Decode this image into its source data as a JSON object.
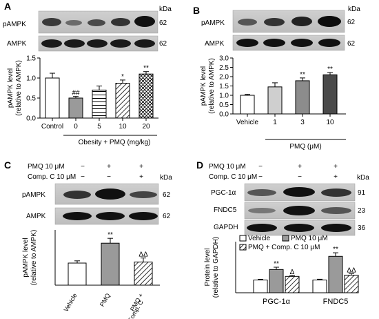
{
  "panels": {
    "A": {
      "letter": "A"
    },
    "B": {
      "letter": "B"
    },
    "C": {
      "letter": "C"
    },
    "D": {
      "letter": "D"
    }
  },
  "blots": {
    "A": {
      "kda_label": "kDa",
      "rows": [
        {
          "name": "pAMPK",
          "kda": "62"
        },
        {
          "name": "AMPK",
          "kda": "62"
        }
      ]
    },
    "B": {
      "kda_label": "kDa",
      "rows": [
        {
          "name": "pAMPK",
          "kda": "62"
        },
        {
          "name": "AMPK",
          "kda": "62"
        }
      ]
    },
    "C": {
      "kda_label": "kDa",
      "rows": [
        {
          "name": "pAMPK",
          "kda": "62"
        },
        {
          "name": "AMPK",
          "kda": "62"
        }
      ]
    },
    "D": {
      "kda_label": "kDa",
      "rows": [
        {
          "name": "PGC-1α",
          "kda": "91"
        },
        {
          "name": "FNDC5",
          "kda": "23"
        },
        {
          "name": "GAPDH",
          "kda": "36"
        }
      ]
    }
  },
  "treatments": {
    "C": {
      "rows": [
        {
          "label": "PMQ 10 μM",
          "marks": [
            "−",
            "+",
            "+"
          ]
        },
        {
          "label": "Comp. C 10 μM",
          "marks": [
            "−",
            "−",
            "+"
          ]
        }
      ]
    },
    "D": {
      "rows": [
        {
          "label": "PMQ 10 μM",
          "marks": [
            "−",
            "+",
            "+"
          ]
        },
        {
          "label": "Comp. C 10 μM",
          "marks": [
            "−",
            "−",
            "+"
          ]
        }
      ]
    }
  },
  "chart_data": [
    {
      "panel": "A",
      "type": "bar",
      "categories": [
        "Control",
        "0",
        "5",
        "10",
        "20"
      ],
      "values": [
        1.0,
        0.5,
        0.7,
        0.87,
        1.1
      ],
      "errors": [
        0.12,
        0.04,
        0.1,
        0.08,
        0.06
      ],
      "annotations": [
        "",
        "##",
        "",
        "*",
        "**"
      ],
      "ylabel_line1": "pAMPK level",
      "ylabel_line2": "(relative to AMPK)",
      "xgroup_label": "Obesity + PMQ (mg/kg)",
      "ylim": [
        0,
        1.5
      ],
      "yticks": [
        "0.0",
        "0.5",
        "1.0",
        "1.5"
      ]
    },
    {
      "panel": "B",
      "type": "bar",
      "categories": [
        "Vehicle",
        "1",
        "3",
        "10"
      ],
      "values": [
        1.0,
        1.45,
        1.78,
        2.1
      ],
      "errors": [
        0.05,
        0.22,
        0.15,
        0.12
      ],
      "annotations": [
        "",
        "",
        "**",
        "**"
      ],
      "ylabel_line1": "pAMPK level",
      "ylabel_line2": "(relative to AMPK)",
      "xgroup_label": "PMQ (μM)",
      "ylim": [
        0,
        3.0
      ],
      "yticks": [
        "0.0",
        "0.5",
        "1.0",
        "1.5",
        "2.0",
        "2.5",
        "3.0"
      ]
    },
    {
      "panel": "C",
      "type": "bar",
      "categories": [
        "Vehicle",
        "PMQ",
        "PMQ +\nComp. C"
      ],
      "values": [
        1.0,
        1.9,
        1.05
      ],
      "errors": [
        0.1,
        0.22,
        0.18
      ],
      "annotations": [
        "",
        "**",
        "ΔΔ"
      ],
      "ylabel_line1": "pAMPK level",
      "ylabel_line2": "(relative to AMPK)",
      "ylim": [
        0,
        2.5
      ]
    },
    {
      "panel": "D",
      "type": "bar",
      "categories": [
        "PGC-1α",
        "FNDC5"
      ],
      "series": [
        {
          "name": "Vehicle",
          "values": [
            1.0,
            1.0
          ],
          "errors": [
            0.05,
            0.06
          ],
          "annotations": [
            "",
            ""
          ]
        },
        {
          "name": "PMQ 10 μM",
          "values": [
            1.82,
            2.85
          ],
          "errors": [
            0.18,
            0.28
          ],
          "annotations": [
            "**",
            "**"
          ]
        },
        {
          "name": "PMQ + Comp. C 10 μM",
          "values": [
            1.28,
            1.38
          ],
          "errors": [
            0.08,
            0.12
          ],
          "annotations": [
            "Δ",
            "ΔΔ"
          ]
        }
      ],
      "ylabel_line1": "Protein level",
      "ylabel_line2": "(relative to GAPDH)",
      "ylim": [
        0,
        4
      ]
    }
  ],
  "colors": {
    "white": "#ffffff",
    "gray": "#9a9a9a",
    "light_gray": "#cfcfcf",
    "mid_gray": "#8c8c8c",
    "dark_gray": "#4a4a4a"
  }
}
